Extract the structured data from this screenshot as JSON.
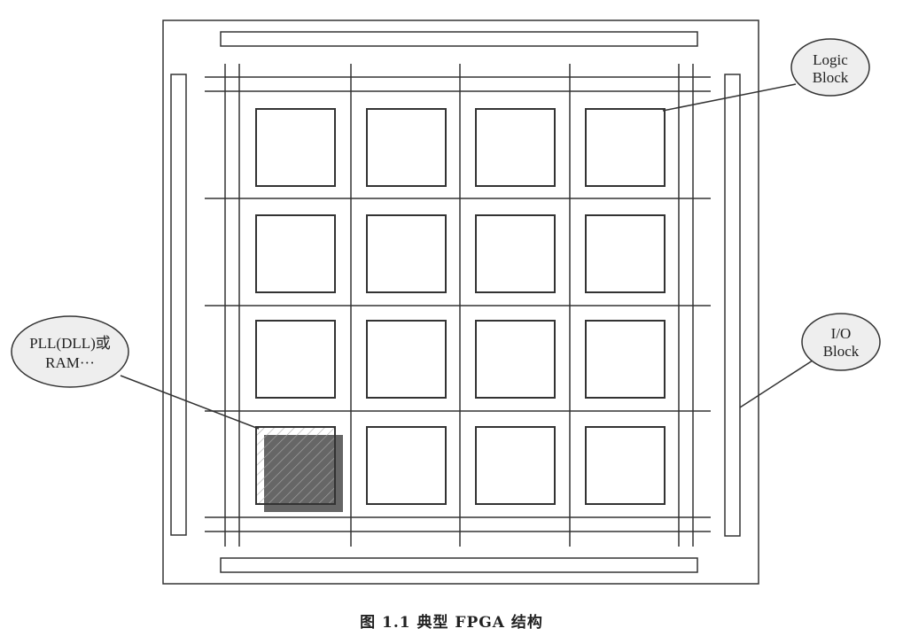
{
  "labels": {
    "logic_line1": "Logic",
    "logic_line2": "Block",
    "io_line1": "I/O",
    "io_line2": "Block",
    "pll_line1": "PLL(DLL)或",
    "pll_line2": "RAM···"
  },
  "caption": "图 1.1   典型 FPGA 结构",
  "colors": {
    "line": "#333333",
    "chip_background": "#ffffff",
    "callout_fill": "#eeeeee",
    "hatch": "#aaaaaa",
    "shadow": "#666666"
  },
  "grid": {
    "rows": 4,
    "cols": 4,
    "special_block": "row-4-col-1"
  }
}
